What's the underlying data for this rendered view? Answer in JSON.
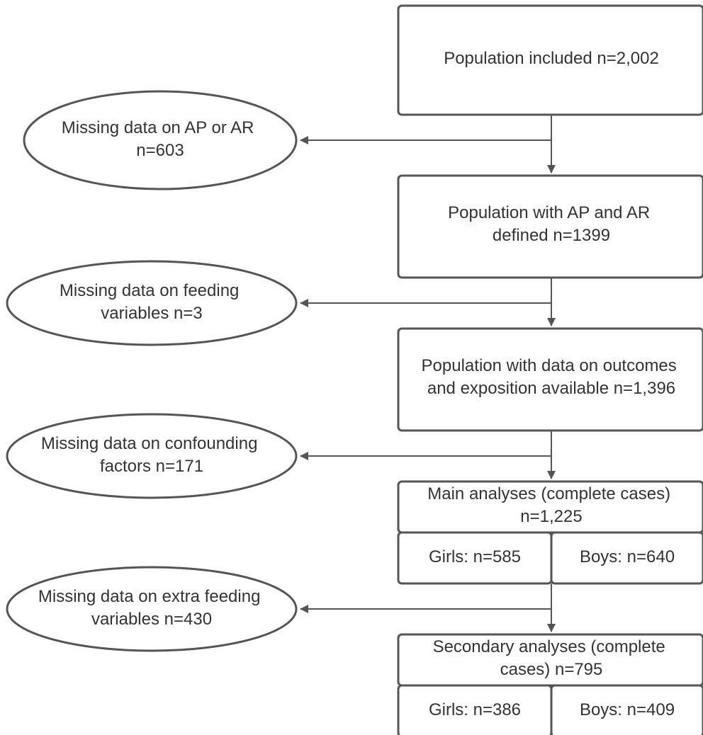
{
  "flowchart": {
    "population_included": {
      "lines": [
        "Population included n=2,002"
      ]
    },
    "missing_ap_ar": {
      "lines": [
        "Missing data on AP or AR",
        "n=603"
      ]
    },
    "population_ap_ar": {
      "lines": [
        "Population with AP and AR",
        "defined n=1399"
      ]
    },
    "missing_feeding": {
      "lines": [
        "Missing data on feeding",
        "variables n=3"
      ]
    },
    "population_outcomes": {
      "lines": [
        "Population with data on outcomes",
        "and exposition available n=1,396"
      ]
    },
    "missing_confounding": {
      "lines": [
        "Missing data on confounding",
        "factors n=171"
      ]
    },
    "main_analyses": {
      "lines": [
        "Main analyses (complete cases)",
        "n=1,225"
      ]
    },
    "main_girls": {
      "lines": [
        "Girls: n=585"
      ]
    },
    "main_boys": {
      "lines": [
        "Boys: n=640"
      ]
    },
    "missing_extra_feeding": {
      "lines": [
        "Missing data on extra feeding",
        "variables n=430"
      ]
    },
    "secondary_analyses": {
      "lines": [
        "Secondary analyses (complete",
        "cases) n=795"
      ]
    },
    "secondary_girls": {
      "lines": [
        "Girls: n=386"
      ]
    },
    "secondary_boys": {
      "lines": [
        "Boys: n=409"
      ]
    }
  }
}
